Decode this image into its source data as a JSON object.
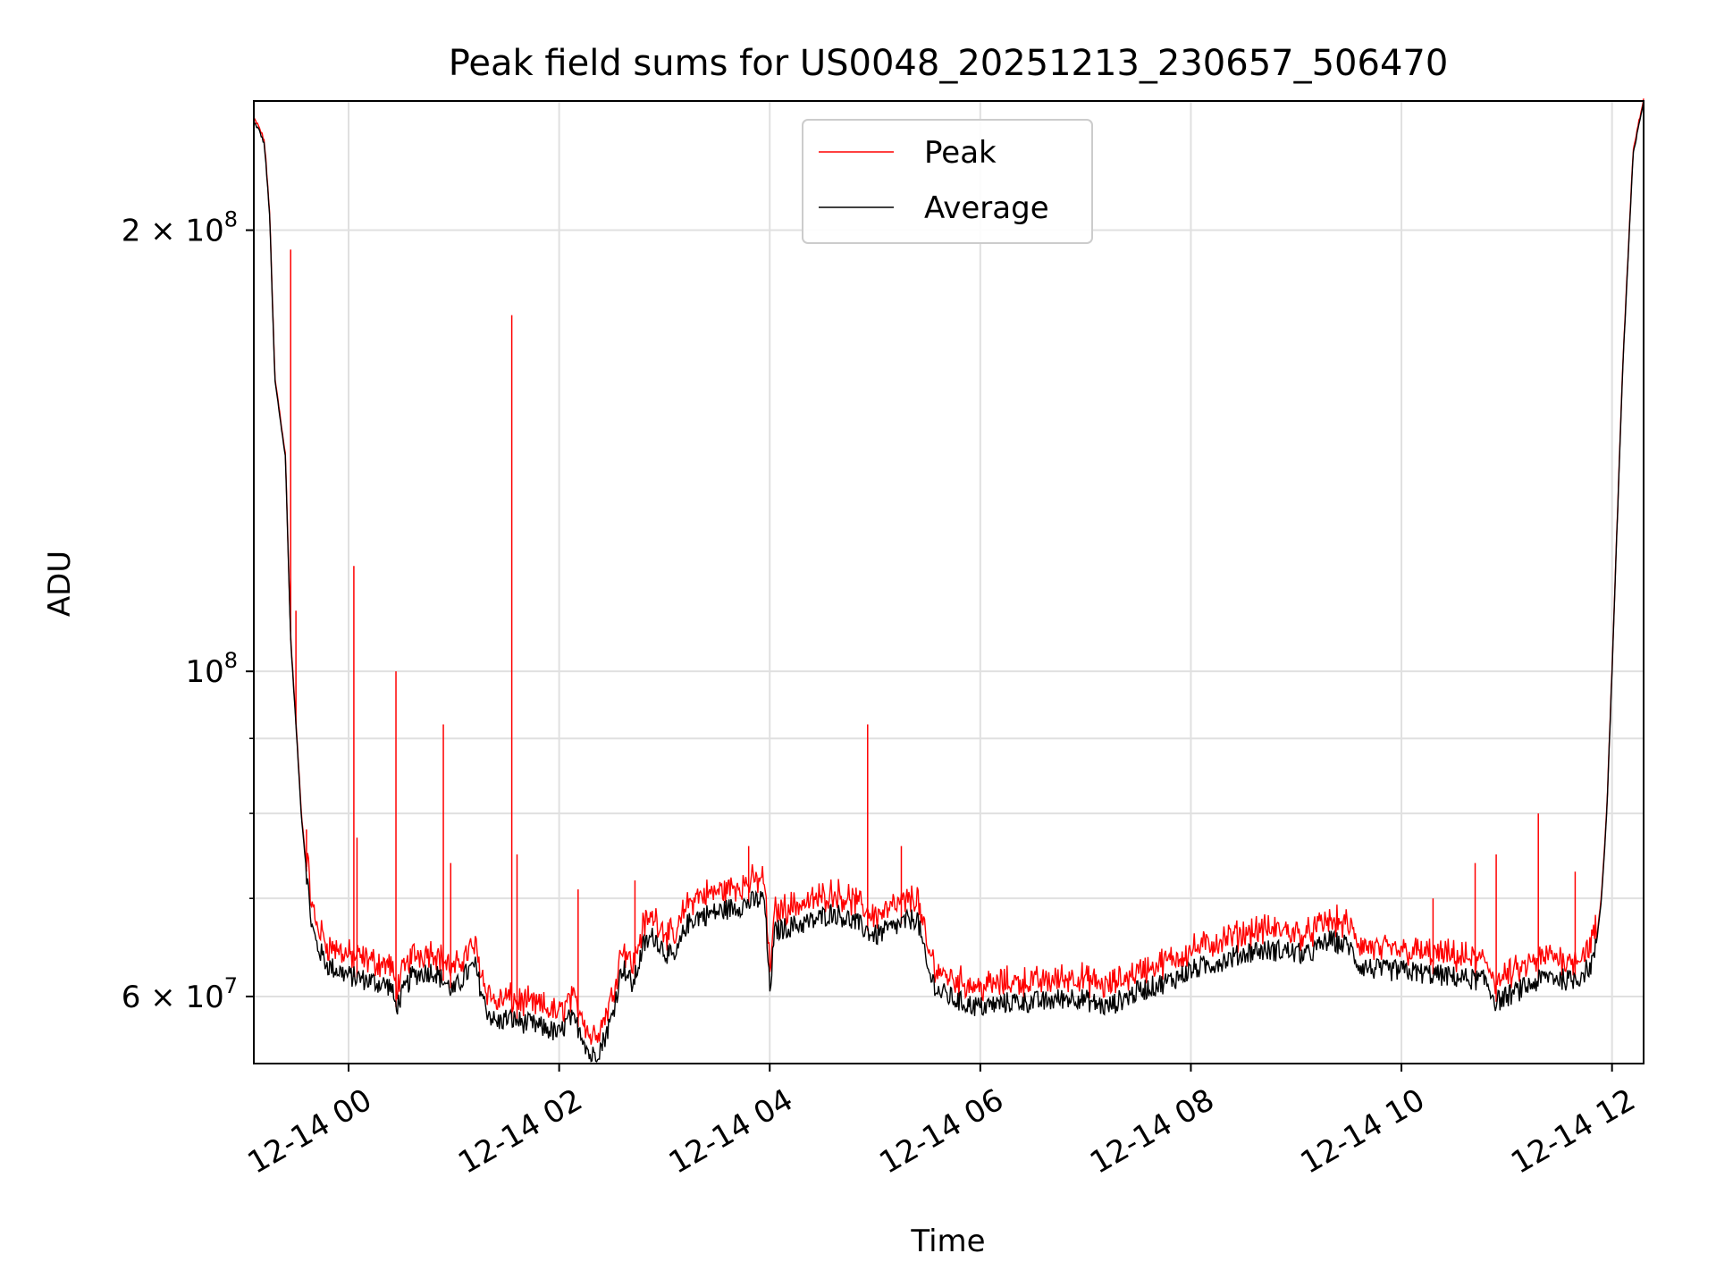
{
  "chart_data": {
    "type": "line",
    "title": "Peak field sums for US0048_20251213_230657_506470",
    "xlabel": "Time",
    "ylabel": "ADU",
    "x_unit": "hours since 2025-12-14 00:00",
    "xlim": [
      -0.9,
      12.3
    ],
    "ylim": [
      54000000,
      245000000
    ],
    "yscale": "log",
    "grid": true,
    "legend_position": "upper center",
    "x_ticks": [
      {
        "value": 0,
        "label": "12-14 00"
      },
      {
        "value": 2,
        "label": "12-14 02"
      },
      {
        "value": 4,
        "label": "12-14 04"
      },
      {
        "value": 6,
        "label": "12-14 06"
      },
      {
        "value": 8,
        "label": "12-14 08"
      },
      {
        "value": 10,
        "label": "12-14 10"
      },
      {
        "value": 12,
        "label": "12-14 12"
      }
    ],
    "y_ticks": [
      {
        "value": 60000000,
        "base": "6 × 10",
        "exp": "7"
      },
      {
        "value": 100000000,
        "base": "10",
        "exp": "8"
      },
      {
        "value": 200000000,
        "base": "2 × 10",
        "exp": "8"
      }
    ],
    "y_minor_ticks": [
      70000000,
      80000000,
      90000000
    ],
    "series": [
      {
        "name": "Peak",
        "color": "#ff0000",
        "role": "peak"
      },
      {
        "name": "Average",
        "color": "#000000",
        "role": "average"
      }
    ],
    "average": {
      "x": [
        -0.9,
        -0.85,
        -0.8,
        -0.75,
        -0.7,
        -0.6,
        -0.55,
        -0.5,
        -0.45,
        -0.4,
        -0.35,
        -0.3,
        -0.25,
        -0.2,
        -0.1,
        0.0,
        0.2,
        0.4,
        0.45,
        0.6,
        0.8,
        1.0,
        1.1,
        1.2,
        1.3,
        1.4,
        1.5,
        1.7,
        1.9,
        2.0,
        2.1,
        2.2,
        2.3,
        2.4,
        2.5,
        2.6,
        2.7,
        2.8,
        2.9,
        3.0,
        3.1,
        3.2,
        3.3,
        3.5,
        3.8,
        3.95,
        4.0,
        4.05,
        4.2,
        4.4,
        4.6,
        4.8,
        5.0,
        5.2,
        5.4,
        5.5,
        5.6,
        5.8,
        6.0,
        6.3,
        6.6,
        6.9,
        7.2,
        7.5,
        7.8,
        8.0,
        8.3,
        8.6,
        8.9,
        9.1,
        9.3,
        9.5,
        9.6,
        9.8,
        10.0,
        10.4,
        10.8,
        10.9,
        11.0,
        11.4,
        11.6,
        11.7,
        11.8,
        11.85,
        11.9,
        11.95,
        12.0,
        12.1,
        12.2,
        12.3
      ],
      "y": [
        237000000,
        234000000,
        229000000,
        205000000,
        158000000,
        140000000,
        105000000,
        92000000,
        80000000,
        73000000,
        67000000,
        65000000,
        64000000,
        63000000,
        62500000,
        62000000,
        61500000,
        61000000,
        59000000,
        62000000,
        62500000,
        60500000,
        62000000,
        63000000,
        59000000,
        57500000,
        58000000,
        57500000,
        57000000,
        56500000,
        58000000,
        57000000,
        54500000,
        55500000,
        58000000,
        63000000,
        61000000,
        65000000,
        66000000,
        64500000,
        63500000,
        67000000,
        68000000,
        68500000,
        69500000,
        70000000,
        60500000,
        66500000,
        67000000,
        67500000,
        68500000,
        67500000,
        66000000,
        67000000,
        68000000,
        62500000,
        60500000,
        59500000,
        59000000,
        59500000,
        59500000,
        60000000,
        59000000,
        60500000,
        61500000,
        62500000,
        63500000,
        64500000,
        64500000,
        64000000,
        65500000,
        65000000,
        63000000,
        62500000,
        62500000,
        62000000,
        61500000,
        59500000,
        60000000,
        62000000,
        61500000,
        62000000,
        63000000,
        65000000,
        70000000,
        80000000,
        100000000,
        160000000,
        225000000,
        245000000
      ]
    },
    "peak_offset_fraction": 0.02,
    "peak_spikes": [
      {
        "x": -0.55,
        "y": 194000000
      },
      {
        "x": -0.5,
        "y": 110000000
      },
      {
        "x": -0.4,
        "y": 78000000
      },
      {
        "x": 0.05,
        "y": 118000000
      },
      {
        "x": 0.08,
        "y": 77000000
      },
      {
        "x": 0.45,
        "y": 100000000
      },
      {
        "x": 0.9,
        "y": 92000000
      },
      {
        "x": 0.97,
        "y": 74000000
      },
      {
        "x": 1.55,
        "y": 175000000
      },
      {
        "x": 1.6,
        "y": 75000000
      },
      {
        "x": 2.18,
        "y": 71000000
      },
      {
        "x": 2.72,
        "y": 72000000
      },
      {
        "x": 3.8,
        "y": 76000000
      },
      {
        "x": 4.93,
        "y": 92000000
      },
      {
        "x": 5.25,
        "y": 76000000
      },
      {
        "x": 10.3,
        "y": 70000000
      },
      {
        "x": 10.7,
        "y": 74000000
      },
      {
        "x": 10.9,
        "y": 75000000
      },
      {
        "x": 11.3,
        "y": 80000000
      },
      {
        "x": 11.65,
        "y": 73000000
      }
    ]
  }
}
